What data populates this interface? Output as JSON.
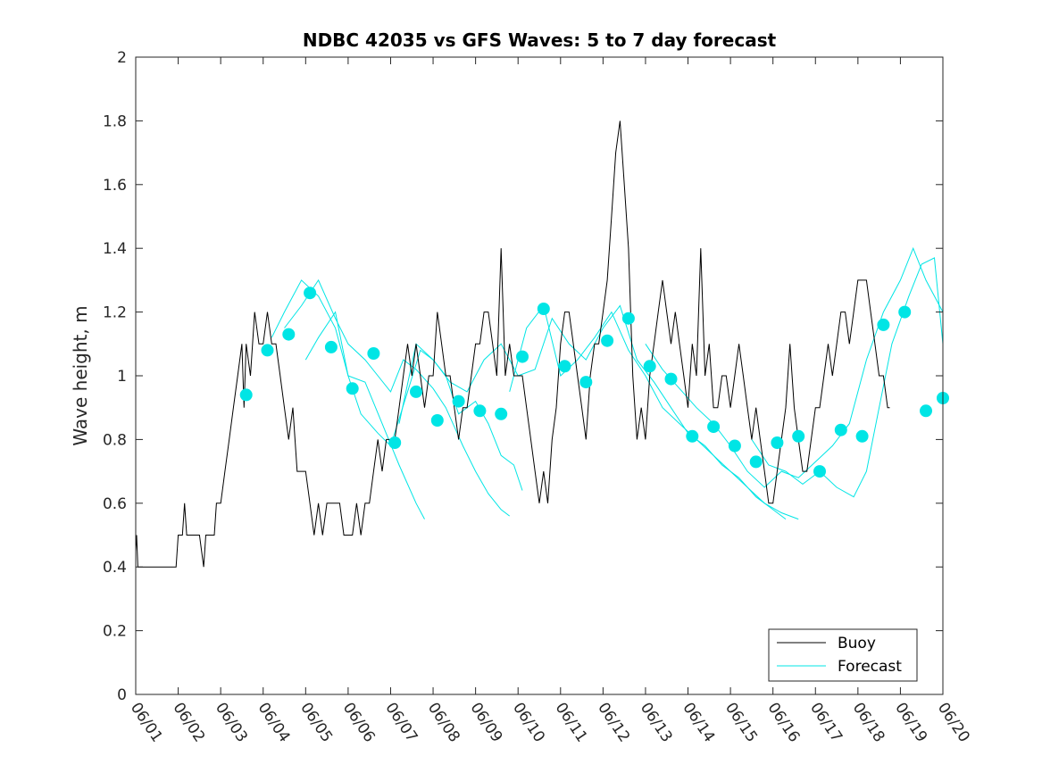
{
  "chart_data": {
    "type": "line",
    "title": "NDBC 42035 vs GFS Waves: 5 to 7 day forecast",
    "xlabel": "",
    "ylabel": "Wave height, m",
    "x_unit": "days since 06/01",
    "xlim": [
      0,
      19
    ],
    "ylim": [
      0,
      2
    ],
    "yticks": [
      0,
      0.2,
      0.4,
      0.6,
      0.8,
      1,
      1.2,
      1.4,
      1.6,
      1.8,
      2
    ],
    "ytick_labels": [
      "0",
      "0.2",
      "0.4",
      "0.6",
      "0.8",
      "1",
      "1.2",
      "1.4",
      "1.6",
      "1.8",
      "2"
    ],
    "xticks": [
      0,
      1,
      2,
      3,
      4,
      5,
      6,
      7,
      8,
      9,
      10,
      11,
      12,
      13,
      14,
      15,
      16,
      17,
      18,
      19
    ],
    "xtick_labels": [
      "06/01",
      "06/02",
      "06/03",
      "06/04",
      "06/05",
      "06/06",
      "06/07",
      "06/08",
      "06/09",
      "06/10",
      "06/11",
      "06/12",
      "06/13",
      "06/14",
      "06/15",
      "06/16",
      "06/17",
      "06/18",
      "06/19",
      "06/20"
    ],
    "grid": false,
    "legend_position": "bottom-right",
    "colors": {
      "buoy": "#000000",
      "forecast": "#00e5e5",
      "axis": "#262626"
    },
    "series": [
      {
        "name": "Buoy",
        "style": "line",
        "points": [
          [
            0.0,
            0.45
          ],
          [
            0.02,
            0.5
          ],
          [
            0.05,
            0.4
          ],
          [
            0.5,
            0.4
          ],
          [
            0.95,
            0.4
          ],
          [
            1.0,
            0.5
          ],
          [
            1.1,
            0.5
          ],
          [
            1.15,
            0.6
          ],
          [
            1.2,
            0.5
          ],
          [
            1.5,
            0.5
          ],
          [
            1.6,
            0.4
          ],
          [
            1.65,
            0.5
          ],
          [
            1.85,
            0.5
          ],
          [
            1.9,
            0.6
          ],
          [
            2.0,
            0.6
          ],
          [
            2.1,
            0.7
          ],
          [
            2.2,
            0.8
          ],
          [
            2.3,
            0.9
          ],
          [
            2.4,
            1.0
          ],
          [
            2.5,
            1.1
          ],
          [
            2.55,
            0.9
          ],
          [
            2.6,
            1.1
          ],
          [
            2.7,
            1.0
          ],
          [
            2.8,
            1.2
          ],
          [
            2.9,
            1.1
          ],
          [
            3.0,
            1.1
          ],
          [
            3.1,
            1.2
          ],
          [
            3.2,
            1.1
          ],
          [
            3.3,
            1.1
          ],
          [
            3.4,
            1.0
          ],
          [
            3.5,
            0.9
          ],
          [
            3.6,
            0.8
          ],
          [
            3.7,
            0.9
          ],
          [
            3.8,
            0.7
          ],
          [
            3.9,
            0.7
          ],
          [
            4.0,
            0.7
          ],
          [
            4.1,
            0.6
          ],
          [
            4.2,
            0.5
          ],
          [
            4.3,
            0.6
          ],
          [
            4.4,
            0.5
          ],
          [
            4.5,
            0.6
          ],
          [
            4.6,
            0.6
          ],
          [
            4.8,
            0.6
          ],
          [
            4.9,
            0.5
          ],
          [
            5.1,
            0.5
          ],
          [
            5.2,
            0.6
          ],
          [
            5.3,
            0.5
          ],
          [
            5.4,
            0.6
          ],
          [
            5.5,
            0.6
          ],
          [
            5.6,
            0.7
          ],
          [
            5.7,
            0.8
          ],
          [
            5.8,
            0.7
          ],
          [
            5.9,
            0.8
          ],
          [
            6.0,
            0.8
          ],
          [
            6.1,
            0.8
          ],
          [
            6.2,
            0.9
          ],
          [
            6.3,
            1.0
          ],
          [
            6.4,
            1.1
          ],
          [
            6.5,
            1.0
          ],
          [
            6.6,
            1.1
          ],
          [
            6.7,
            1.0
          ],
          [
            6.8,
            0.9
          ],
          [
            6.9,
            1.0
          ],
          [
            7.0,
            1.0
          ],
          [
            7.1,
            1.2
          ],
          [
            7.2,
            1.1
          ],
          [
            7.3,
            1.0
          ],
          [
            7.4,
            1.0
          ],
          [
            7.5,
            0.9
          ],
          [
            7.6,
            0.8
          ],
          [
            7.7,
            0.9
          ],
          [
            7.8,
            0.9
          ],
          [
            7.9,
            1.0
          ],
          [
            8.0,
            1.1
          ],
          [
            8.1,
            1.1
          ],
          [
            8.2,
            1.2
          ],
          [
            8.3,
            1.2
          ],
          [
            8.4,
            1.1
          ],
          [
            8.5,
            1.0
          ],
          [
            8.6,
            1.4
          ],
          [
            8.7,
            1.0
          ],
          [
            8.8,
            1.1
          ],
          [
            8.9,
            1.0
          ],
          [
            9.0,
            1.0
          ],
          [
            9.1,
            1.0
          ],
          [
            9.2,
            0.9
          ],
          [
            9.3,
            0.8
          ],
          [
            9.4,
            0.7
          ],
          [
            9.5,
            0.6
          ],
          [
            9.6,
            0.7
          ],
          [
            9.7,
            0.6
          ],
          [
            9.8,
            0.8
          ],
          [
            9.9,
            0.9
          ],
          [
            10.0,
            1.1
          ],
          [
            10.1,
            1.2
          ],
          [
            10.2,
            1.2
          ],
          [
            10.3,
            1.1
          ],
          [
            10.4,
            1.0
          ],
          [
            10.5,
            0.9
          ],
          [
            10.6,
            0.8
          ],
          [
            10.7,
            1.0
          ],
          [
            10.8,
            1.1
          ],
          [
            10.9,
            1.1
          ],
          [
            11.0,
            1.2
          ],
          [
            11.1,
            1.3
          ],
          [
            11.2,
            1.5
          ],
          [
            11.3,
            1.7
          ],
          [
            11.4,
            1.8
          ],
          [
            11.5,
            1.6
          ],
          [
            11.6,
            1.4
          ],
          [
            11.7,
            1.0
          ],
          [
            11.8,
            0.8
          ],
          [
            11.9,
            0.9
          ],
          [
            12.0,
            0.8
          ],
          [
            12.1,
            1.0
          ],
          [
            12.2,
            1.1
          ],
          [
            12.3,
            1.2
          ],
          [
            12.4,
            1.3
          ],
          [
            12.5,
            1.2
          ],
          [
            12.6,
            1.1
          ],
          [
            12.7,
            1.2
          ],
          [
            12.8,
            1.1
          ],
          [
            12.9,
            1.0
          ],
          [
            13.0,
            0.9
          ],
          [
            13.1,
            1.1
          ],
          [
            13.2,
            1.0
          ],
          [
            13.3,
            1.4
          ],
          [
            13.4,
            1.0
          ],
          [
            13.5,
            1.1
          ],
          [
            13.6,
            0.9
          ],
          [
            13.7,
            0.9
          ],
          [
            13.8,
            1.0
          ],
          [
            13.9,
            1.0
          ],
          [
            14.0,
            0.9
          ],
          [
            14.1,
            1.0
          ],
          [
            14.2,
            1.1
          ],
          [
            14.3,
            1.0
          ],
          [
            14.4,
            0.9
          ],
          [
            14.5,
            0.8
          ],
          [
            14.6,
            0.9
          ],
          [
            14.7,
            0.8
          ],
          [
            14.8,
            0.7
          ],
          [
            14.9,
            0.6
          ],
          [
            15.0,
            0.6
          ],
          [
            15.1,
            0.7
          ],
          [
            15.2,
            0.8
          ],
          [
            15.3,
            0.9
          ],
          [
            15.4,
            1.1
          ],
          [
            15.5,
            0.9
          ],
          [
            15.6,
            0.8
          ],
          [
            15.7,
            0.7
          ],
          [
            15.8,
            0.7
          ],
          [
            15.9,
            0.8
          ],
          [
            16.0,
            0.9
          ],
          [
            16.1,
            0.9
          ],
          [
            16.2,
            1.0
          ],
          [
            16.3,
            1.1
          ],
          [
            16.4,
            1.0
          ],
          [
            16.5,
            1.1
          ],
          [
            16.6,
            1.2
          ],
          [
            16.7,
            1.2
          ],
          [
            16.8,
            1.1
          ],
          [
            16.9,
            1.2
          ],
          [
            17.0,
            1.3
          ],
          [
            17.1,
            1.3
          ],
          [
            17.2,
            1.3
          ],
          [
            17.3,
            1.2
          ],
          [
            17.4,
            1.1
          ],
          [
            17.5,
            1.0
          ],
          [
            17.6,
            1.0
          ],
          [
            17.7,
            0.9
          ],
          [
            17.75,
            0.9
          ]
        ]
      },
      {
        "name": "Forecast",
        "style": "lines+markers",
        "points": [
          [
            2.6,
            0.94
          ],
          [
            3.1,
            1.08
          ],
          [
            3.6,
            1.13
          ],
          [
            4.1,
            1.26
          ],
          [
            4.6,
            1.09
          ],
          [
            5.1,
            0.96
          ],
          [
            5.6,
            1.07
          ],
          [
            6.1,
            0.79
          ],
          [
            6.6,
            0.95
          ],
          [
            7.1,
            0.86
          ],
          [
            7.6,
            0.92
          ],
          [
            8.1,
            0.89
          ],
          [
            8.6,
            0.88
          ],
          [
            9.1,
            1.06
          ],
          [
            9.6,
            1.21
          ],
          [
            10.1,
            1.03
          ],
          [
            10.6,
            0.98
          ],
          [
            11.1,
            1.11
          ],
          [
            11.6,
            1.18
          ],
          [
            12.1,
            1.03
          ],
          [
            12.6,
            0.99
          ],
          [
            13.1,
            0.81
          ],
          [
            13.6,
            0.84
          ],
          [
            14.1,
            0.78
          ],
          [
            14.6,
            0.73
          ],
          [
            15.1,
            0.79
          ],
          [
            15.6,
            0.81
          ],
          [
            16.1,
            0.7
          ],
          [
            16.6,
            0.83
          ],
          [
            17.1,
            0.81
          ],
          [
            17.6,
            1.16
          ],
          [
            18.1,
            1.2
          ],
          [
            18.6,
            0.89
          ],
          [
            19.0,
            0.93
          ]
        ]
      }
    ],
    "forecast_runs": [
      [
        [
          3.2,
          1.12
        ],
        [
          3.5,
          1.2
        ],
        [
          3.9,
          1.3
        ],
        [
          4.3,
          1.25
        ],
        [
          4.7,
          1.15
        ],
        [
          5.0,
          1.0
        ],
        [
          5.4,
          0.98
        ],
        [
          5.8,
          0.85
        ],
        [
          6.2,
          0.72
        ],
        [
          6.6,
          0.6
        ],
        [
          6.8,
          0.55
        ]
      ],
      [
        [
          3.5,
          1.15
        ],
        [
          3.9,
          1.22
        ],
        [
          4.3,
          1.3
        ],
        [
          4.7,
          1.18
        ],
        [
          5.0,
          1.1
        ],
        [
          5.4,
          1.05
        ],
        [
          5.7,
          1.0
        ],
        [
          6.0,
          0.95
        ],
        [
          6.3,
          1.05
        ],
        [
          6.6,
          1.02
        ],
        [
          7.0,
          0.96
        ],
        [
          7.3,
          0.9
        ],
        [
          7.7,
          0.78
        ],
        [
          8.0,
          0.7
        ],
        [
          8.3,
          0.63
        ],
        [
          8.6,
          0.58
        ],
        [
          8.8,
          0.56
        ]
      ],
      [
        [
          4.0,
          1.05
        ],
        [
          4.3,
          1.12
        ],
        [
          4.7,
          1.2
        ],
        [
          5.0,
          1.0
        ],
        [
          5.3,
          0.88
        ],
        [
          5.7,
          0.82
        ],
        [
          6.0,
          0.78
        ],
        [
          6.4,
          0.95
        ],
        [
          6.7,
          1.08
        ],
        [
          7.0,
          1.05
        ],
        [
          7.3,
          1.0
        ],
        [
          7.6,
          0.88
        ],
        [
          8.0,
          0.92
        ],
        [
          8.3,
          0.85
        ],
        [
          8.6,
          0.75
        ],
        [
          8.9,
          0.72
        ],
        [
          9.1,
          0.64
        ]
      ],
      [
        [
          6.2,
          0.85
        ],
        [
          6.6,
          1.1
        ],
        [
          7.0,
          1.05
        ],
        [
          7.4,
          0.98
        ],
        [
          7.8,
          0.95
        ],
        [
          8.2,
          1.05
        ],
        [
          8.6,
          1.1
        ],
        [
          9.0,
          1.0
        ],
        [
          9.4,
          1.02
        ],
        [
          9.8,
          1.18
        ],
        [
          10.2,
          1.1
        ],
        [
          10.6,
          1.05
        ],
        [
          11.0,
          1.15
        ],
        [
          11.4,
          1.22
        ],
        [
          11.8,
          1.05
        ],
        [
          12.2,
          0.98
        ],
        [
          12.6,
          0.9
        ],
        [
          13.0,
          0.82
        ],
        [
          13.4,
          0.78
        ],
        [
          13.8,
          0.72
        ],
        [
          14.2,
          0.68
        ],
        [
          14.6,
          0.62
        ],
        [
          15.0,
          0.58
        ],
        [
          15.3,
          0.55
        ]
      ],
      [
        [
          8.8,
          0.95
        ],
        [
          9.2,
          1.15
        ],
        [
          9.6,
          1.22
        ],
        [
          10.0,
          1.0
        ],
        [
          10.4,
          1.05
        ],
        [
          10.8,
          1.12
        ],
        [
          11.2,
          1.2
        ],
        [
          11.6,
          1.08
        ],
        [
          12.0,
          1.0
        ],
        [
          12.4,
          0.9
        ],
        [
          12.8,
          0.85
        ],
        [
          13.2,
          0.8
        ],
        [
          13.6,
          0.75
        ],
        [
          14.0,
          0.7
        ],
        [
          14.4,
          0.65
        ],
        [
          14.8,
          0.6
        ],
        [
          15.2,
          0.57
        ],
        [
          15.6,
          0.55
        ]
      ],
      [
        [
          12.0,
          1.1
        ],
        [
          12.4,
          1.02
        ],
        [
          12.8,
          0.96
        ],
        [
          13.2,
          0.9
        ],
        [
          13.6,
          0.85
        ],
        [
          14.0,
          0.78
        ],
        [
          14.4,
          0.7
        ],
        [
          14.8,
          0.65
        ],
        [
          15.2,
          0.7
        ],
        [
          15.6,
          0.68
        ],
        [
          16.0,
          0.73
        ],
        [
          16.4,
          0.78
        ],
        [
          16.8,
          0.85
        ],
        [
          17.2,
          1.05
        ],
        [
          17.6,
          1.2
        ],
        [
          18.0,
          1.3
        ],
        [
          18.3,
          1.4
        ],
        [
          18.6,
          1.3
        ],
        [
          19.0,
          1.2
        ]
      ],
      [
        [
          14.5,
          0.8
        ],
        [
          14.9,
          0.72
        ],
        [
          15.3,
          0.7
        ],
        [
          15.7,
          0.66
        ],
        [
          16.1,
          0.7
        ],
        [
          16.5,
          0.65
        ],
        [
          16.9,
          0.62
        ],
        [
          17.2,
          0.7
        ],
        [
          17.5,
          0.9
        ],
        [
          17.8,
          1.1
        ],
        [
          18.2,
          1.25
        ],
        [
          18.5,
          1.35
        ],
        [
          18.8,
          1.37
        ],
        [
          19.0,
          1.1
        ]
      ]
    ],
    "legend": [
      "Buoy",
      "Forecast"
    ]
  }
}
